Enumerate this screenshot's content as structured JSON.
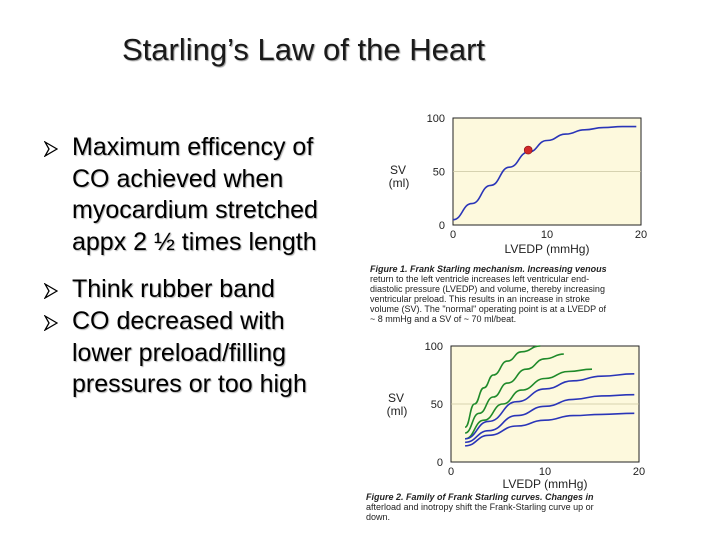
{
  "title": "Starling’s Law of the Heart",
  "bullets": [
    {
      "lines": [
        "Maximum efficency of",
        "CO achieved when",
        "myocardium stretched",
        "appx 2 ½ times length"
      ]
    },
    {
      "lines": [
        "Think rubber band"
      ]
    },
    {
      "lines": [
        "CO decreased with",
        "lower preload/filling",
        "pressures or too high"
      ]
    }
  ],
  "figure1": {
    "ylabel_line1": "SV",
    "ylabel_line2": "(ml)",
    "xlabel": "LVEDP (mmHg)",
    "caption_lines": [
      "Figure 1.  Frank Starling mechanism.  Increasing venous",
      "return to the left ventricle increases left ventricular end-",
      "diastolic pressure (LVEDP) and volume, thereby increasing",
      "ventricular preload.  This results in an increase in stroke",
      "volume (SV).  The \"normal\" operating point is at a LVEDP of",
      "~ 8 mmHg and a SV of ~ 70 ml/beat."
    ]
  },
  "figure2": {
    "ylabel_line1": "SV",
    "ylabel_line2": "(ml)",
    "xlabel": "LVEDP (mmHg)",
    "caption_lines": [
      "Figure 2.  Family of Frank Starling curves.  Changes in",
      "afterload and inotropy shift the Frank-Starling curve up or",
      "down."
    ]
  },
  "chart_data": [
    {
      "type": "line",
      "x_ticks": [
        "0",
        "10",
        "20"
      ],
      "y_ticks": [
        "0",
        "50",
        "100"
      ],
      "xlim": [
        0,
        20
      ],
      "ylim": [
        0,
        100
      ],
      "series": [
        {
          "color": "#2a35b8",
          "x": [
            0,
            2,
            4,
            6,
            8,
            10,
            12,
            14,
            16,
            18,
            19.5
          ],
          "y": [
            5,
            20,
            37,
            54,
            68,
            79,
            85,
            89,
            91,
            92,
            92
          ]
        }
      ],
      "marker": {
        "x": 8,
        "y": 70,
        "color": "#d22a2a"
      }
    },
    {
      "type": "line",
      "x_ticks": [
        "0",
        "10",
        "20"
      ],
      "y_ticks": [
        "0",
        "50",
        "100"
      ],
      "xlim": [
        0,
        20
      ],
      "ylim": [
        0,
        100
      ],
      "series": [
        {
          "color": "#1f8a2a",
          "x": [
            1.5,
            2.5,
            3.5,
            4.5,
            6,
            7.5,
            9.5
          ],
          "y": [
            30,
            50,
            64,
            75,
            87,
            95,
            100
          ]
        },
        {
          "color": "#1f8a2a",
          "x": [
            1.5,
            3,
            4.5,
            6,
            8,
            10,
            12
          ],
          "y": [
            25,
            42,
            56,
            68,
            80,
            89,
            93
          ]
        },
        {
          "color": "#1f8a2a",
          "x": [
            1.5,
            3.5,
            5.5,
            7.5,
            10,
            12.5,
            15
          ],
          "y": [
            20,
            36,
            50,
            62,
            72,
            78,
            80
          ]
        },
        {
          "color": "#2a35b8",
          "x": [
            1.5,
            4,
            7,
            10,
            13,
            16,
            19.5
          ],
          "y": [
            20,
            35,
            52,
            63,
            70,
            74,
            76
          ]
        },
        {
          "color": "#2a35b8",
          "x": [
            1.5,
            4,
            7,
            10,
            13,
            16,
            19.5
          ],
          "y": [
            17,
            27,
            40,
            48,
            54,
            57,
            58
          ]
        },
        {
          "color": "#2a35b8",
          "x": [
            1.5,
            4,
            7,
            10,
            13,
            16,
            19.5
          ],
          "y": [
            14,
            23,
            31,
            36,
            40,
            41,
            42
          ]
        }
      ]
    }
  ]
}
